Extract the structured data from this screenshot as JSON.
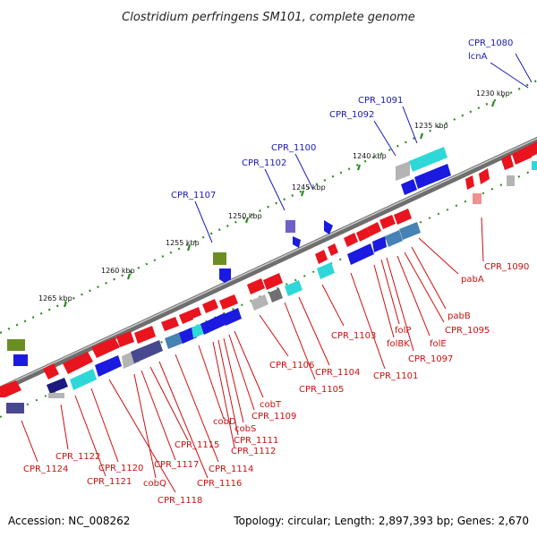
{
  "title": "Clostridium perfringens SM101, complete genome",
  "footer": {
    "accession": "Accession: NC_008262",
    "summary": "Topology: circular; Length: 2,897,393 bp; Genes: 2,670"
  },
  "colors": {
    "backbone": "#808080",
    "tick": "#2e8b22",
    "label_above": "#1a1ab4",
    "label_below": "#cc1010",
    "gene_red": "#e8141e",
    "gene_blue": "#1a1ae0",
    "gene_cyan": "#2fd8d8",
    "gene_gray": "#b4b4b4",
    "gene_olive": "#6b8e23",
    "gene_steel": "#4682b4"
  },
  "scale_labels": [
    "1230 kbp",
    "1235 kbp",
    "1240 kbp",
    "1245 kbp",
    "1250 kbp",
    "1255 kbp",
    "1260 kbp",
    "1265 kbp"
  ],
  "labels_above": [
    "CPR_1080",
    "lcnA",
    "CPR_1091",
    "CPR_1092",
    "CPR_1100",
    "CPR_1102",
    "CPR_1107"
  ],
  "labels_below": [
    "CPR_1090",
    "pabA",
    "pabB",
    "CPR_1095",
    "folE",
    "CPR_1097",
    "folP",
    "folBK",
    "CPR_1101",
    "CPR_1103",
    "CPR_1104",
    "CPR_1105",
    "CPR_1106",
    "cobT",
    "CPR_1109",
    "cobS",
    "CPR_1111",
    "CPR_1112",
    "cobD",
    "CPR_1114",
    "CPR_1115",
    "cobQ",
    "CPR_1116",
    "CPR_1117",
    "CPR_1118",
    "CPR_1120",
    "CPR_1121",
    "CPR_1122",
    "CPR_1124"
  ]
}
